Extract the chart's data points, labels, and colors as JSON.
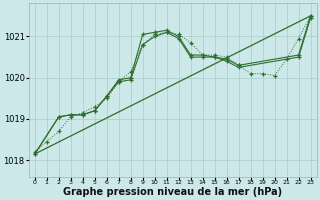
{
  "bg_color": "#cce8e8",
  "grid_color": "#aacccc",
  "line_color": "#2d6e2d",
  "xlabel": "Graphe pression niveau de la mer (hPa)",
  "xlabel_fontsize": 7,
  "ylabel_ticks": [
    1018,
    1019,
    1020,
    1021
  ],
  "xlim": [
    -0.5,
    23.5
  ],
  "ylim": [
    1017.6,
    1021.8
  ],
  "line1_dotted": {
    "x": [
      0,
      1,
      2,
      3,
      4,
      5,
      6,
      7,
      8,
      9,
      10,
      11,
      12,
      13,
      14,
      15,
      16,
      17,
      18,
      19,
      20,
      21,
      22,
      23
    ],
    "y": [
      1018.2,
      1018.45,
      1018.7,
      1019.05,
      1019.15,
      1019.3,
      1019.5,
      1019.9,
      1020.15,
      1020.8,
      1021.05,
      1021.1,
      1021.05,
      1020.85,
      1020.55,
      1020.55,
      1020.5,
      1020.3,
      1020.1,
      1020.1,
      1020.05,
      1020.45,
      1020.95,
      1021.5
    ]
  },
  "line2_solid": {
    "x": [
      0,
      2,
      3,
      4,
      5,
      6,
      7,
      8,
      9,
      10,
      11,
      12,
      13,
      14,
      15,
      16,
      17,
      22,
      23
    ],
    "y": [
      1018.15,
      1019.05,
      1019.1,
      1019.1,
      1019.2,
      1019.55,
      1019.95,
      1020.0,
      1021.05,
      1021.1,
      1021.15,
      1021.0,
      1020.55,
      1020.55,
      1020.5,
      1020.45,
      1020.3,
      1020.55,
      1021.5
    ]
  },
  "line3_solid": {
    "x": [
      0,
      2,
      3,
      4,
      5,
      6,
      7,
      8,
      9,
      10,
      11,
      12,
      13,
      14,
      15,
      16,
      17,
      22,
      23
    ],
    "y": [
      1018.15,
      1019.05,
      1019.1,
      1019.1,
      1019.2,
      1019.55,
      1019.9,
      1019.95,
      1020.8,
      1021.0,
      1021.1,
      1020.95,
      1020.5,
      1020.5,
      1020.5,
      1020.4,
      1020.25,
      1020.5,
      1021.45
    ]
  },
  "line4_straight": {
    "x": [
      0,
      23
    ],
    "y": [
      1018.15,
      1021.5
    ]
  }
}
